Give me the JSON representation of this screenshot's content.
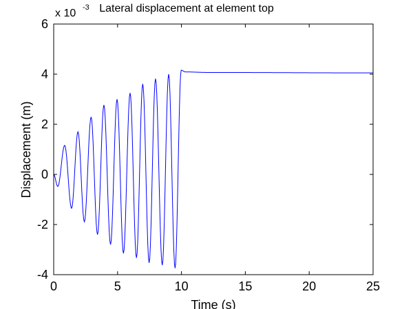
{
  "chart_data": {
    "type": "line",
    "title": "Lateral displacement at element top",
    "xlabel": "Time (s)",
    "ylabel": "Displacement (m)",
    "y_exponent_label": {
      "base": "x 10",
      "exponent": "-3"
    },
    "xlim": [
      0,
      25
    ],
    "ylim": [
      -4,
      6
    ],
    "xticks": [
      "0",
      "5",
      "10",
      "15",
      "20",
      "25"
    ],
    "yticks": [
      "-4",
      "-2",
      "0",
      "2",
      "4",
      "6"
    ],
    "grid": false,
    "line_color": "#0000ff",
    "series": [
      {
        "x": [
          0,
          0.32,
          0.86,
          1.4,
          1.9,
          2.4,
          2.93,
          3.43,
          3.93,
          4.45,
          4.96,
          5.46,
          5.98,
          6.48,
          6.97,
          7.47,
          7.97,
          8.5,
          9.0,
          9.5,
          9.98,
          10.3,
          12,
          25
        ],
        "y": [
          0,
          -0.48,
          1.16,
          -1.35,
          1.7,
          -1.89,
          2.29,
          -2.4,
          2.77,
          -2.8,
          3.0,
          -3.15,
          3.25,
          -3.33,
          3.61,
          -3.53,
          3.82,
          -3.62,
          4.0,
          -3.74,
          4.16,
          4.09,
          4.07,
          4.05
        ]
      }
    ]
  }
}
